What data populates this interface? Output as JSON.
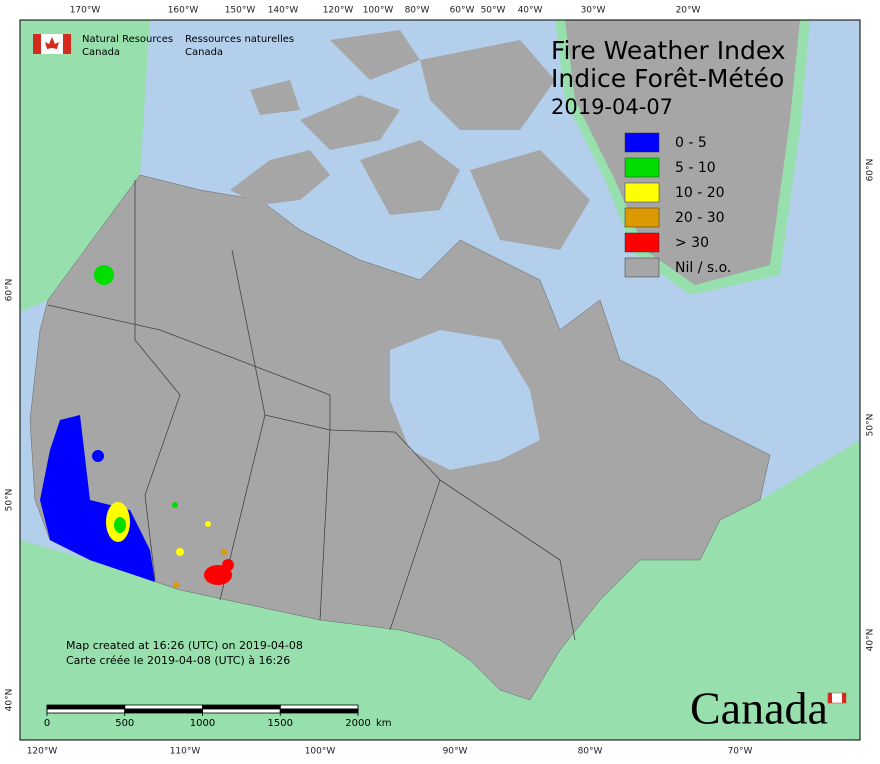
{
  "header": {
    "logo_en": [
      "Natural Resources",
      "Canada"
    ],
    "logo_fr": [
      "Ressources naturelles",
      "Canada"
    ]
  },
  "map": {
    "title": [
      "Fire Weather Index",
      "Indice Forêt-Météo"
    ],
    "date": "2019-04-07",
    "legend": [
      {
        "label": "0 - 5",
        "color": "#0000ff"
      },
      {
        "label": "5 - 10",
        "color": "#00dd00"
      },
      {
        "label": "10 - 20",
        "color": "#ffff00"
      },
      {
        "label": "20 - 30",
        "color": "#dd9900"
      },
      {
        "label": "> 30",
        "color": "#ff0000"
      },
      {
        "label": "Nil / s.o.",
        "color": "#a6a6a6"
      }
    ],
    "graticule": {
      "top": [
        "170°W",
        "160°W",
        "150°W",
        "140°W",
        "120°W",
        "100°W",
        "80°W",
        "60°W",
        "50°W",
        "40°W",
        "30°W",
        "20°W"
      ],
      "bottom": [
        "120°W",
        "110°W",
        "100°W",
        "90°W",
        "80°W",
        "70°W"
      ],
      "left": [
        "60°N",
        "50°N",
        "40°N"
      ],
      "right": [
        "60°N",
        "50°N",
        "40°N"
      ]
    },
    "notes": [
      "Map created at 16:26 (UTC) on 2019-04-08",
      "Carte créée le 2019-04-08 (UTC) à 16:26"
    ],
    "scale_bar": {
      "ticks": [
        0,
        500,
        1000,
        1500,
        2000
      ],
      "unit": "km"
    },
    "wordmark": "Canada"
  }
}
